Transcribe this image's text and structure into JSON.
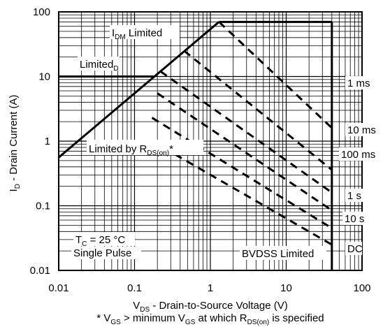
{
  "chart_data": {
    "type": "line",
    "x_scale": "log",
    "y_scale": "log",
    "xlim": [
      0.01,
      100
    ],
    "ylim": [
      0.01,
      100
    ],
    "x_ticks": [
      "0.01",
      "0.1",
      "1",
      "10",
      "100"
    ],
    "x_tick_values": [
      0.01,
      0.1,
      1,
      10,
      100
    ],
    "y_ticks": [
      "0.01",
      "0.1",
      "1",
      "10",
      "100"
    ],
    "y_tick_values": [
      0.01,
      0.1,
      1,
      10,
      100
    ],
    "xlabel": {
      "pre": "V",
      "sub": "DS",
      "post": " - Drain-to-Source Voltage (V)"
    },
    "ylabel": {
      "pre": "I",
      "sub": "D",
      "post": " - Drain Current (A)"
    },
    "footnote": {
      "p1": "* V",
      "s1": "GS",
      "p2": " > minimum V",
      "s2": "GS",
      "p3": " at which R",
      "s3": "DS(on)",
      "p4": " is specified"
    },
    "grid": "log-minor",
    "limits": [
      {
        "name": "rdson_limit",
        "points": [
          [
            0.01,
            0.56
          ],
          [
            1.3,
            70
          ]
        ]
      },
      {
        "name": "idm_limit",
        "points": [
          [
            1.3,
            70
          ],
          [
            40,
            70
          ]
        ]
      },
      {
        "name": "id_limit",
        "points": [
          [
            0.01,
            10
          ],
          [
            0.18,
            10
          ]
        ]
      },
      {
        "name": "bvdss_limit",
        "points": [
          [
            40,
            0.01
          ],
          [
            40,
            70
          ]
        ]
      }
    ],
    "pulse_lines": [
      {
        "label": "1 ms",
        "points": [
          [
            1.3,
            70
          ],
          [
            40,
            1.6
          ]
        ]
      },
      {
        "label": "10 ms",
        "points": [
          [
            0.45,
            25
          ],
          [
            40,
            0.36
          ]
        ]
      },
      {
        "label": "100 ms",
        "points": [
          [
            0.22,
            12
          ],
          [
            40,
            0.16
          ]
        ]
      },
      {
        "label": "1 s",
        "points": [
          [
            0.2,
            5.5
          ],
          [
            40,
            0.085
          ]
        ]
      },
      {
        "label": "10 s",
        "points": [
          [
            0.17,
            2.3
          ],
          [
            40,
            0.045
          ]
        ]
      },
      {
        "label": "DC",
        "points": [
          [
            0.17,
            1.0
          ],
          [
            40,
            0.025
          ]
        ]
      }
    ],
    "annotations": {
      "idm": {
        "pre": "I",
        "sub": "DM",
        "post": " Limited"
      },
      "id": {
        "pre": "Limited",
        "sub": "D",
        "post": ""
      },
      "rdson": {
        "pre": "Limited by R",
        "sub": "DS(on)",
        "post": "*"
      },
      "tc": {
        "pre": "T",
        "sub": "C",
        "post": " = 25 °C"
      },
      "single": "Single Pulse",
      "bvdss": "BVDSS Limited"
    }
  }
}
